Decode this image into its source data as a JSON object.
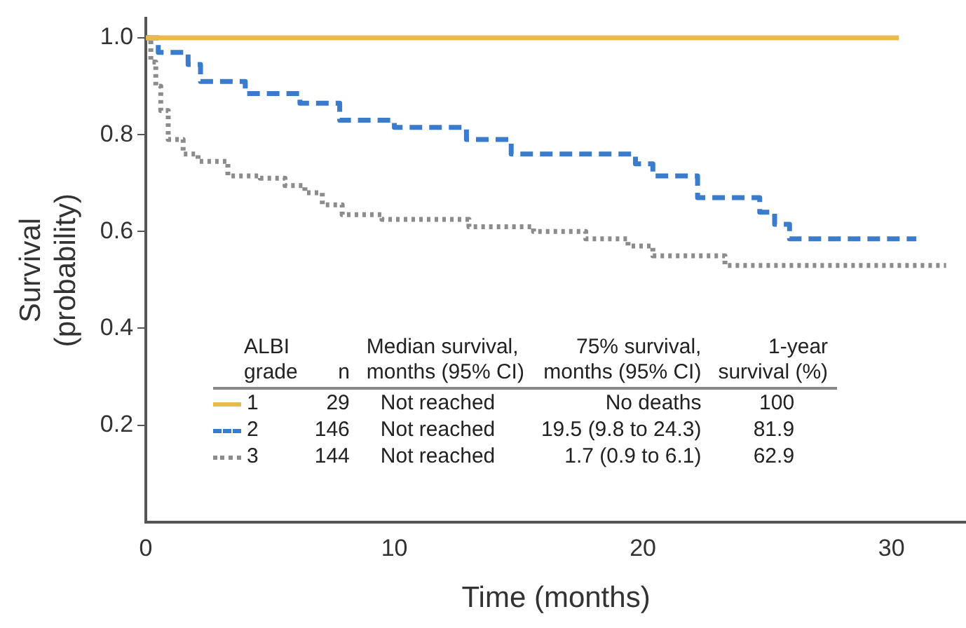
{
  "chart_data": {
    "type": "step",
    "xlabel": "Time (months)",
    "ylabel": "Survival (probability)",
    "legend_title": "ALBI grade",
    "xlim": [
      0,
      33
    ],
    "xticks": [
      0,
      10,
      20,
      30
    ],
    "ylim": [
      0,
      1.04
    ],
    "yticks": [
      0.2,
      0.4,
      0.6,
      0.8,
      {
        "value": 1.0,
        "label": "1.0"
      }
    ],
    "grid": false,
    "legend": "bottom left",
    "series": [
      {
        "name": "1",
        "color": "#e9b949",
        "line_style": "solid",
        "x": [
          0,
          30.3
        ],
        "values": [
          1,
          1
        ]
      },
      {
        "name": "2",
        "color": "#3a7ccb",
        "line_style": "dashed",
        "x": [
          0,
          0.5,
          1.7,
          2.2,
          4.0,
          6.2,
          7.8,
          10.0,
          12.9,
          14.7,
          19.7,
          20.4,
          22.2,
          24.7,
          25.3,
          25.9,
          31.0
        ],
        "values": [
          1,
          0.97,
          0.945,
          0.91,
          0.885,
          0.865,
          0.83,
          0.815,
          0.79,
          0.76,
          0.74,
          0.715,
          0.67,
          0.64,
          0.615,
          0.585,
          0.585
        ]
      },
      {
        "name": "3",
        "color": "#8c8c8c",
        "line_style": "dotted",
        "x": [
          0,
          0.2,
          0.4,
          0.6,
          0.9,
          1.5,
          2.1,
          3.3,
          4.6,
          5.6,
          6.4,
          7.1,
          7.9,
          9.5,
          13.0,
          15.6,
          17.7,
          19.4,
          20.4,
          23.3,
          32.2
        ],
        "values": [
          1,
          0.95,
          0.9,
          0.85,
          0.79,
          0.76,
          0.745,
          0.715,
          0.71,
          0.695,
          0.68,
          0.655,
          0.635,
          0.625,
          0.61,
          0.6,
          0.585,
          0.57,
          0.55,
          0.53,
          0.53
        ]
      }
    ],
    "annotations": [
      "n",
      "Median survival, months (95% CI)",
      "75% survival, months (95% CI)",
      "1-year survival (%)",
      "29",
      "Not reached",
      "No deaths",
      "100",
      "146",
      "Not reached",
      "19.5 (9.8 to 24.3)",
      "81.9",
      "144",
      "Not reached",
      "1.7 (0.9 to 6.1)",
      "62.9"
    ]
  }
}
